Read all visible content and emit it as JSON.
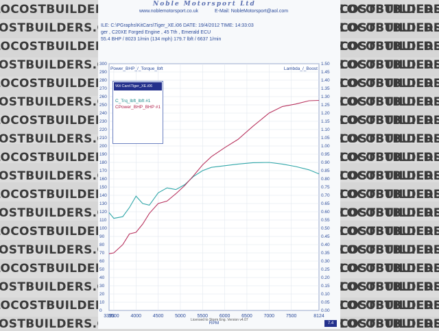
{
  "watermark": {
    "text": "LOCOSTBUILDERS.CO.UK"
  },
  "header": {
    "company": "Noble Motorsport Ltd",
    "website": "www.noblemotorsport.co.uk",
    "email": "E-Mail: NobleMotorsport@aol.com",
    "file_line": "ILE: C:\\PGraphs\\KitCars\\Tiger_XE.i06  DATE: 19/4/2012  TIME: 14:33:03",
    "engine_line": "ger , C20XE Forged Engine , 45 Tth , Emerald ECU",
    "peak_line": "55.4 BHP / 8023 1/min (134 mph)   179.7 lbft / 6637 1/min"
  },
  "legend": {
    "file": "\\Kit Cars\\Tiger_XE.i06",
    "entries": [
      "C_Trq_lbft_lbft #1",
      "CPower_BHP_BHP #1"
    ]
  },
  "footer": {
    "note": "Licensed to Storm Eng. Version v4.07",
    "badge": "7.4"
  },
  "colors": {
    "torque": "#2fa6a8",
    "power": "#b8335e",
    "grid": "#dde3ec",
    "axis": "#2a4a9a"
  },
  "chart_data": {
    "type": "line",
    "title": "",
    "ylabel": "Power_BHP_/_Torque_lbft",
    "y2label": "Lambda_/_Boost",
    "xlabel": "RPM",
    "xlim": [
      3393,
      8124
    ],
    "ylim": [
      0,
      300
    ],
    "y2lim": [
      0,
      1.5
    ],
    "x_ticks": [
      "3393",
      "3500",
      "4000",
      "4500",
      "5000",
      "5500",
      "6000",
      "6500",
      "7000",
      "7500",
      "8124"
    ],
    "x_tick_values": [
      3393,
      3500,
      4000,
      4500,
      5000,
      5500,
      6000,
      6500,
      7000,
      7500,
      8124
    ],
    "y_ticks": [
      "300",
      "290",
      "280",
      "270",
      "260",
      "250",
      "240",
      "230",
      "220",
      "210",
      "200",
      "190",
      "180",
      "170",
      "160",
      "150",
      "140",
      "130",
      "120",
      "110",
      "100",
      "90",
      "80",
      "70",
      "60",
      "50",
      "40",
      "30",
      "20",
      "10",
      "0"
    ],
    "y_tick_values": [
      300,
      290,
      280,
      270,
      260,
      250,
      240,
      230,
      220,
      210,
      200,
      190,
      180,
      170,
      160,
      150,
      140,
      130,
      120,
      110,
      100,
      90,
      80,
      70,
      60,
      50,
      40,
      30,
      20,
      10,
      0
    ],
    "y2_ticks": [
      "1.50",
      "1.45",
      "1.40",
      "1.35",
      "1.30",
      "1.25",
      "1.20",
      "1.15",
      "1.10",
      "1.05",
      "1.00",
      "0.95",
      "0.90",
      "0.85",
      "0.80",
      "0.75",
      "0.70",
      "0.65",
      "0.60",
      "0.55",
      "0.50",
      "0.45",
      "0.40",
      "0.35",
      "0.30",
      "0.25",
      "0.20",
      "0.15",
      "0.10",
      "0.05",
      "0.00"
    ],
    "y2_tick_values": [
      1.5,
      1.45,
      1.4,
      1.35,
      1.3,
      1.25,
      1.2,
      1.15,
      1.1,
      1.05,
      1.0,
      0.95,
      0.9,
      0.85,
      0.8,
      0.75,
      0.7,
      0.65,
      0.6,
      0.55,
      0.5,
      0.45,
      0.4,
      0.35,
      0.3,
      0.25,
      0.2,
      0.15,
      0.1,
      0.05,
      0.0
    ],
    "grid": true,
    "legend_position": "top-left",
    "series": [
      {
        "name": "C_Trq_lbft_lbft #1",
        "color": "#2fa6a8",
        "x": [
          3393,
          3500,
          3700,
          3850,
          4000,
          4150,
          4300,
          4500,
          4700,
          4900,
          5100,
          5300,
          5500,
          5700,
          6000,
          6300,
          6637,
          7000,
          7300,
          7600,
          7900,
          8124
        ],
        "y": [
          119,
          112,
          114,
          125,
          139,
          130,
          128,
          143,
          149,
          147,
          153,
          163,
          170,
          174,
          176,
          178,
          179.7,
          180,
          178,
          175,
          171,
          166
        ]
      },
      {
        "name": "CPower_BHP_BHP #1",
        "color": "#b8335e",
        "x": [
          3393,
          3500,
          3700,
          3850,
          4000,
          4150,
          4300,
          4500,
          4700,
          4900,
          5100,
          5300,
          5500,
          5700,
          6000,
          6300,
          6637,
          7000,
          7300,
          7600,
          7900,
          8124
        ],
        "y": [
          69,
          70,
          80,
          93,
          95,
          105,
          118,
          130,
          133,
          142,
          152,
          164,
          177,
          187,
          198,
          208,
          224,
          240,
          248,
          251,
          255,
          255.4
        ]
      }
    ]
  }
}
